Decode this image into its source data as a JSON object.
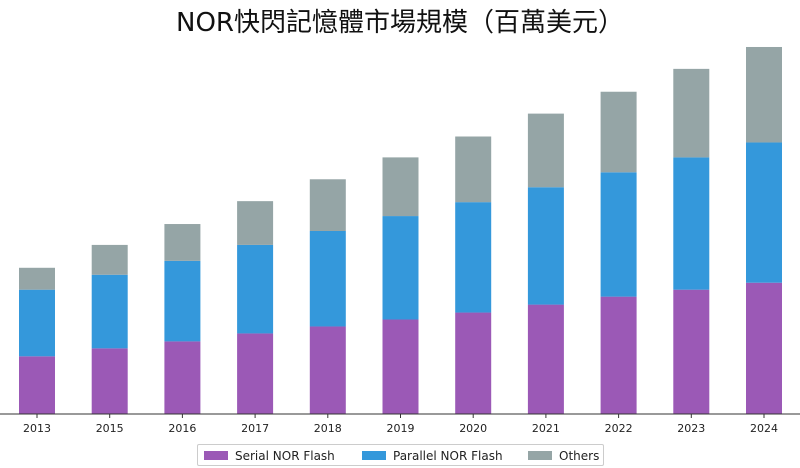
{
  "chart_data": {
    "type": "bar",
    "stacked": true,
    "title": "NOR快閃記憶體市場規模（百萬美元）",
    "xlabel": "",
    "ylabel": "",
    "categories": [
      "2013",
      "2015",
      "2016",
      "2017",
      "2018",
      "2019",
      "2020",
      "2021",
      "2022",
      "2023",
      "2024"
    ],
    "series": [
      {
        "name": "Serial NOR Flash",
        "color": "#9b59b6",
        "values": [
          58,
          66,
          73,
          81,
          88,
          95,
          102,
          110,
          118,
          125,
          132
        ]
      },
      {
        "name": "Parallel NOR Flash",
        "color": "#3498db",
        "values": [
          67,
          74,
          81,
          89,
          96,
          104,
          111,
          118,
          125,
          133,
          141
        ]
      },
      {
        "name": "Others",
        "color": "#95a5a6",
        "values": [
          22,
          30,
          37,
          44,
          52,
          59,
          66,
          74,
          81,
          89,
          96
        ]
      }
    ],
    "ylim": [
      0,
      372
    ],
    "grid": false,
    "legend_position": "bottom"
  }
}
